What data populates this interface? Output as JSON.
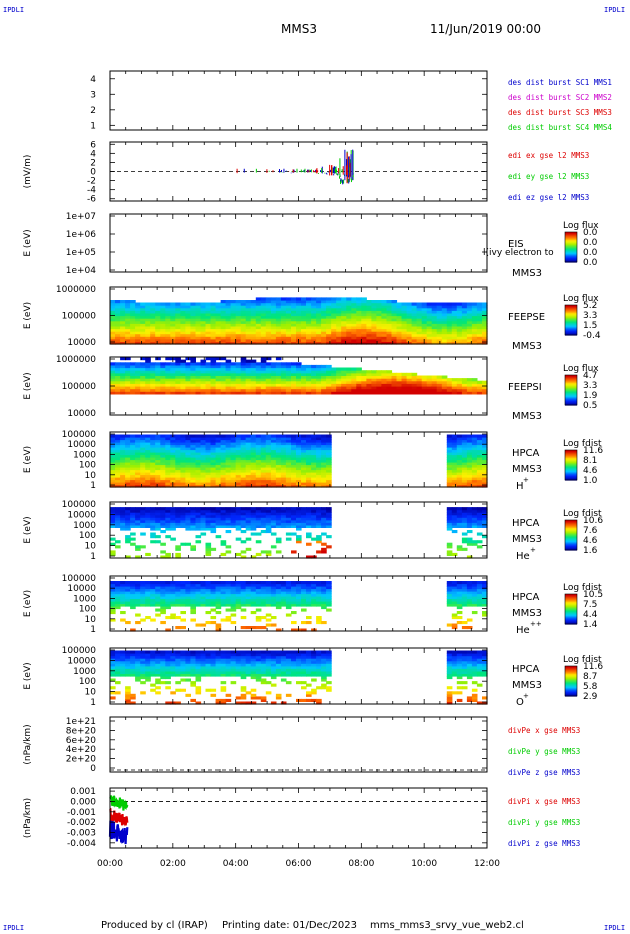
{
  "header": {
    "corner_label": "IPDLI",
    "spacecraft": "MMS3",
    "datetime": "11/Jun/2019 00:00"
  },
  "footer": {
    "produced_by": "Produced by cl (IRAP)",
    "printing_date": "Printing date: 01/Dec/2023",
    "filename": "mms_mms3_srvy_vue_web2.cl"
  },
  "colors": {
    "blue": "#0000cc",
    "magenta": "#cc00cc",
    "red": "#dd0000",
    "green": "#00cc00"
  },
  "chart_data": {
    "type": "multi-panel time series / spectrogram stack",
    "x": {
      "ticks": [
        "00:00",
        "02:00",
        "04:00",
        "06:00",
        "08:00",
        "10:00",
        "12:00"
      ],
      "range_hours": [
        0,
        12
      ]
    },
    "panels": [
      {
        "id": "burst",
        "type": "line",
        "ylabel": "",
        "yticks": [
          "1",
          "2",
          "3",
          "4"
        ],
        "ylim": [
          0.7,
          4.5
        ],
        "legend": [
          {
            "text": "des dist burst SC1 MMS1",
            "color": "#0000cc"
          },
          {
            "text": "des dist burst SC2 MMS2",
            "color": "#cc00cc"
          },
          {
            "text": "des dist burst SC3 MMS3",
            "color": "#dd0000"
          },
          {
            "text": "des dist burst SC4 MMS4",
            "color": "#00cc00"
          }
        ]
      },
      {
        "id": "edi",
        "type": "line",
        "ylabel": "(mV/m)",
        "yticks": [
          "6",
          "4",
          "2",
          "0",
          "-2",
          "-4",
          "-6"
        ],
        "ylim": [
          -6.5,
          6.5
        ],
        "zero_line": true,
        "data_end_hour": 7.75,
        "legend": [
          {
            "text": "edi ex gse l2 MMS3",
            "color": "#dd0000"
          },
          {
            "text": "edi ey gse l2 MMS3",
            "color": "#00cc00"
          },
          {
            "text": "edi ez gse l2 MMS3",
            "color": "#0000cc"
          }
        ]
      },
      {
        "id": "eis",
        "type": "heatmap",
        "ylabel": "E (eV)",
        "yticks": [
          "1e+07",
          "1e+06",
          "1e+05",
          "1e+04"
        ],
        "right_labels": [
          "EIS",
          "MMS3"
        ],
        "overlay_text": "l(ivy electron to",
        "colorbar": {
          "title": "Log flux",
          "ticks": [
            "0.0",
            "0.0",
            "0.0",
            "0.0"
          ]
        },
        "data": "none"
      },
      {
        "id": "feepse",
        "type": "heatmap",
        "ylabel": "E (eV)",
        "yticks": [
          "1000000",
          "100000",
          "10000"
        ],
        "right_labels": [
          "FEEPSE",
          "MMS3"
        ],
        "colorbar": {
          "title": "Log flux",
          "ticks": [
            "5.2",
            "3.3",
            "1.5",
            "-0.4"
          ]
        }
      },
      {
        "id": "feepsi",
        "type": "heatmap",
        "ylabel": "E (eV)",
        "yticks": [
          "1000000",
          "100000",
          "10000"
        ],
        "right_labels": [
          "FEEPSI",
          "MMS3"
        ],
        "colorbar": {
          "title": "Log flux",
          "ticks": [
            "4.7",
            "3.3",
            "1.9",
            "0.5"
          ]
        }
      },
      {
        "id": "hpca_h",
        "type": "heatmap",
        "ylabel": "E (eV)",
        "yticks": [
          "100000",
          "10000",
          "1000",
          "100",
          "10",
          "1"
        ],
        "right_labels": [
          "HPCA",
          "MMS3",
          "H",
          "+"
        ],
        "colorbar": {
          "title": "Log fdist",
          "ticks": [
            "11.6",
            "8.1",
            "4.6",
            "1.0"
          ]
        },
        "gap_hours": [
          7.0,
          10.7
        ]
      },
      {
        "id": "hpca_he",
        "type": "heatmap",
        "ylabel": "E (eV)",
        "yticks": [
          "100000",
          "10000",
          "1000",
          "100",
          "10",
          "1"
        ],
        "right_labels": [
          "HPCA",
          "MMS3",
          "He",
          "+"
        ],
        "colorbar": {
          "title": "Log fdist",
          "ticks": [
            "10.6",
            "7.6",
            "4.6",
            "1.6"
          ]
        },
        "gap_hours": [
          7.0,
          10.7
        ]
      },
      {
        "id": "hpca_hepp",
        "type": "heatmap",
        "ylabel": "E (eV)",
        "yticks": [
          "100000",
          "10000",
          "1000",
          "100",
          "10",
          "1"
        ],
        "right_labels": [
          "HPCA",
          "MMS3",
          "He",
          "++"
        ],
        "colorbar": {
          "title": "Log fdist",
          "ticks": [
            "10.5",
            "7.5",
            "4.4",
            "1.4"
          ]
        },
        "gap_hours": [
          7.0,
          10.7
        ]
      },
      {
        "id": "hpca_o",
        "type": "heatmap",
        "ylabel": "E (eV)",
        "yticks": [
          "100000",
          "10000",
          "1000",
          "100",
          "10",
          "1"
        ],
        "right_labels": [
          "HPCA",
          "MMS3",
          "O",
          "+"
        ],
        "colorbar": {
          "title": "Log fdist",
          "ticks": [
            "11.6",
            "8.7",
            "5.8",
            "2.9"
          ]
        },
        "gap_hours": [
          7.0,
          10.7
        ]
      },
      {
        "id": "divpe",
        "type": "line",
        "ylabel": "(nPa/km)",
        "yticks": [
          "1e+21",
          "8e+20",
          "6e+20",
          "4e+20",
          "2e+20",
          "0"
        ],
        "zero_line": true,
        "legend": [
          {
            "text": "divPe x gse MMS3",
            "color": "#dd0000"
          },
          {
            "text": "divPe y gse MMS3",
            "color": "#00cc00"
          },
          {
            "text": "divPe z gse MMS3",
            "color": "#0000cc"
          }
        ]
      },
      {
        "id": "divpi",
        "type": "line",
        "ylabel": "(nPa/km)",
        "yticks": [
          "0.001",
          "0.000",
          "-0.001",
          "-0.002",
          "-0.003",
          "-0.004"
        ],
        "ylim": [
          -0.0045,
          0.0013
        ],
        "zero_line": true,
        "data_end_hour": 0.55,
        "legend": [
          {
            "text": "divPi x gse MMS3",
            "color": "#dd0000"
          },
          {
            "text": "divPi y gse MMS3",
            "color": "#00cc00"
          },
          {
            "text": "divPi z gse MMS3",
            "color": "#0000cc"
          }
        ]
      }
    ]
  }
}
